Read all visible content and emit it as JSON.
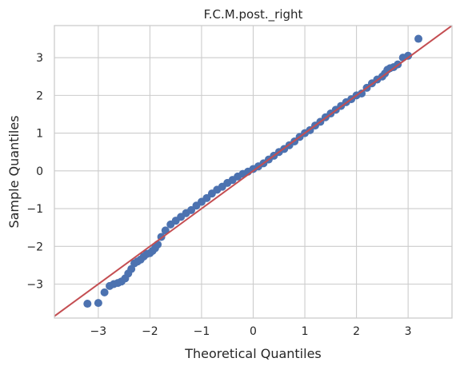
{
  "chart_data": {
    "type": "scatter",
    "title": "F.C.M.post._right",
    "xlabel": "Theoretical Quantiles",
    "ylabel": "Sample Quantiles",
    "xlim": [
      -3.85,
      3.85
    ],
    "ylim": [
      -3.9,
      3.85
    ],
    "xticks": [
      -3,
      -2,
      -1,
      0,
      1,
      2,
      3
    ],
    "yticks": [
      -3,
      -2,
      -1,
      0,
      1,
      2,
      3
    ],
    "xtick_labels": [
      "−3",
      "−2",
      "−1",
      "0",
      "1",
      "2",
      "3"
    ],
    "ytick_labels": [
      "−3",
      "−2",
      "−1",
      "0",
      "1",
      "2",
      "3"
    ],
    "grid": true,
    "colors": {
      "points": "#4c72b0",
      "reference_line": "#c44e52",
      "grid": "#cccccc"
    },
    "reference_line": {
      "slope": 1,
      "intercept": 0
    },
    "series": [
      {
        "values_x": [
          -3.21,
          -3.0,
          -2.88,
          -2.78,
          -2.7,
          -2.62,
          -2.55,
          -2.48,
          -2.42,
          -2.36,
          -2.3,
          -2.24,
          -2.18,
          -2.12,
          -2.06,
          -2.0,
          -1.95,
          -1.9,
          -1.85,
          -1.78,
          -1.7,
          -1.6,
          -1.5,
          -1.4,
          -1.3,
          -1.2,
          -1.1,
          -1.0,
          -0.9,
          -0.8,
          -0.7,
          -0.6,
          -0.5,
          -0.4,
          -0.3,
          -0.2,
          -0.1,
          0.0,
          0.1,
          0.2,
          0.3,
          0.4,
          0.5,
          0.6,
          0.7,
          0.8,
          0.9,
          1.0,
          1.1,
          1.2,
          1.3,
          1.4,
          1.5,
          1.6,
          1.7,
          1.8,
          1.9,
          2.0,
          2.1,
          2.2,
          2.3,
          2.4,
          2.5,
          2.55,
          2.6,
          2.65,
          2.72,
          2.8,
          2.9,
          3.0,
          3.2
        ],
        "values_y": [
          -3.52,
          -3.5,
          -3.22,
          -3.05,
          -3.0,
          -2.97,
          -2.93,
          -2.85,
          -2.72,
          -2.6,
          -2.45,
          -2.4,
          -2.35,
          -2.27,
          -2.2,
          -2.18,
          -2.12,
          -2.05,
          -1.95,
          -1.75,
          -1.58,
          -1.42,
          -1.32,
          -1.22,
          -1.12,
          -1.04,
          -0.92,
          -0.82,
          -0.72,
          -0.6,
          -0.5,
          -0.42,
          -0.32,
          -0.24,
          -0.15,
          -0.08,
          -0.02,
          0.05,
          0.12,
          0.2,
          0.3,
          0.4,
          0.5,
          0.58,
          0.68,
          0.78,
          0.9,
          1.0,
          1.08,
          1.2,
          1.3,
          1.42,
          1.52,
          1.62,
          1.72,
          1.82,
          1.9,
          2.0,
          2.05,
          2.2,
          2.32,
          2.42,
          2.5,
          2.58,
          2.68,
          2.72,
          2.75,
          2.82,
          3.0,
          3.05,
          3.5
        ]
      }
    ]
  }
}
